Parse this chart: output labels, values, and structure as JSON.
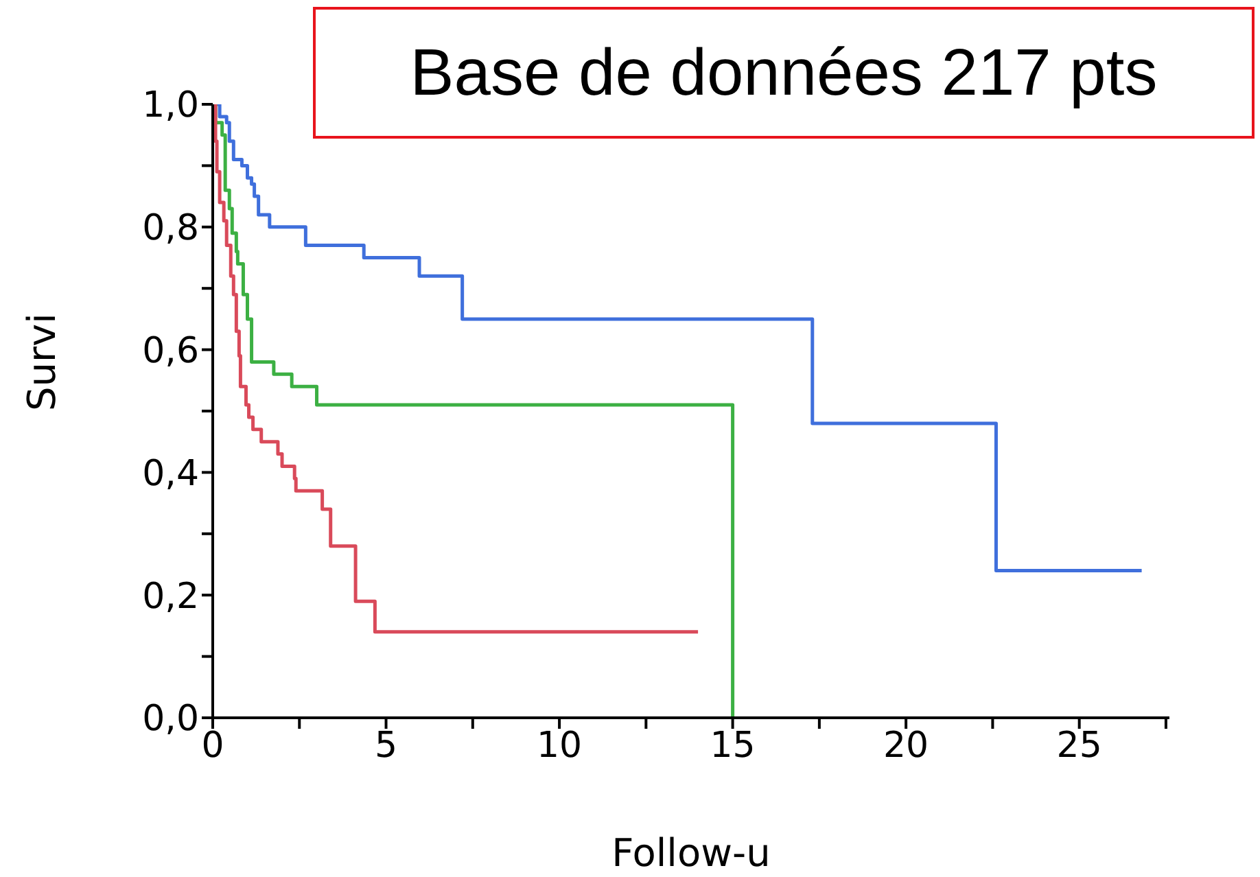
{
  "chart_data": {
    "type": "step",
    "title": "Base de données 217 pts",
    "xlabel": "Follow-u",
    "ylabel": "Survi",
    "xlim": [
      0,
      27.6
    ],
    "ylim": [
      0,
      1
    ],
    "xticks": [
      0,
      {
        "value": 2.5,
        "label": null
      },
      5,
      {
        "value": 7.5,
        "label": null
      },
      10,
      {
        "value": 12.5,
        "label": null
      },
      15,
      {
        "value": 17.5,
        "label": null
      },
      20,
      {
        "value": 22.5,
        "label": null
      },
      25,
      {
        "value": 27.5,
        "label": null
      }
    ],
    "yticks": [
      {
        "value": 0,
        "label": "0,0"
      },
      {
        "value": 0.1,
        "label": null
      },
      {
        "value": 0.2,
        "label": "0,2"
      },
      {
        "value": 0.3,
        "label": null
      },
      {
        "value": 0.4,
        "label": "0,4"
      },
      {
        "value": 0.5,
        "label": null
      },
      {
        "value": 0.6,
        "label": "0,6"
      },
      {
        "value": 0.7,
        "label": null
      },
      {
        "value": 0.8,
        "label": "0,8"
      },
      {
        "value": 0.9,
        "label": null
      },
      {
        "value": 1,
        "label": "1,0"
      }
    ],
    "series": [
      {
        "color": "#3f6fdc",
        "x": [
          0,
          0.2,
          0.4,
          0.48,
          0.6,
          0.84,
          1.0,
          1.12,
          1.2,
          1.32,
          1.64,
          2.68,
          4.36,
          5.96,
          7.2,
          17.3,
          22.6,
          26.8
        ],
        "values": [
          1,
          0.98,
          0.97,
          0.94,
          0.91,
          0.9,
          0.88,
          0.87,
          0.85,
          0.82,
          0.8,
          0.77,
          0.75,
          0.72,
          0.65,
          0.48,
          0.24,
          0.24
        ]
      },
      {
        "color": "#3cb043",
        "x": [
          0,
          0.08,
          0.27,
          0.36,
          0.48,
          0.56,
          0.68,
          0.72,
          0.88,
          1.0,
          1.12,
          1.76,
          2.28,
          3.0,
          15.0
        ],
        "values": [
          1,
          0.97,
          0.95,
          0.86,
          0.83,
          0.79,
          0.76,
          0.74,
          0.69,
          0.65,
          0.58,
          0.56,
          0.54,
          0.51,
          0
        ]
      },
      {
        "color": "#d94a5a",
        "x": [
          0,
          0.08,
          0.12,
          0.2,
          0.32,
          0.4,
          0.52,
          0.6,
          0.68,
          0.76,
          0.8,
          0.96,
          1.04,
          1.16,
          1.4,
          1.88,
          2.0,
          2.36,
          2.4,
          3.16,
          3.4,
          4.12,
          4.68,
          14.0
        ],
        "values": [
          1,
          0.94,
          0.89,
          0.84,
          0.81,
          0.77,
          0.72,
          0.69,
          0.63,
          0.59,
          0.54,
          0.51,
          0.49,
          0.47,
          0.45,
          0.43,
          0.41,
          0.39,
          0.37,
          0.34,
          0.28,
          0.19,
          0.14,
          0.14
        ]
      }
    ]
  }
}
